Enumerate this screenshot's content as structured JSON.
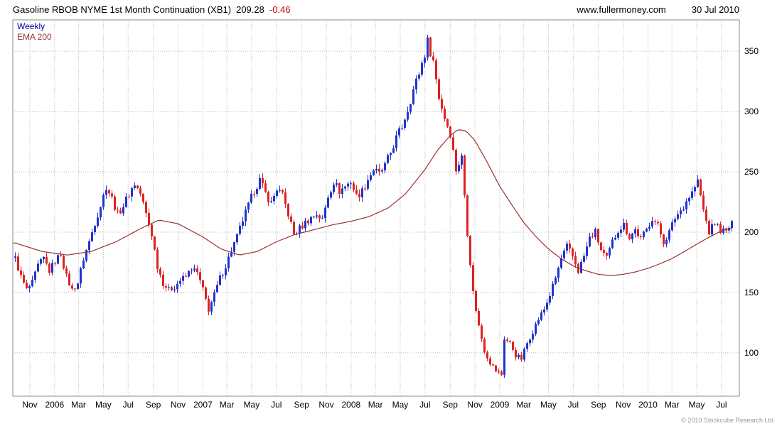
{
  "header": {
    "title": "Gasoline RBOB NYME 1st Month Continuation (XB1)",
    "last_price": "209.28",
    "change": "-0.46",
    "website": "www.fullermoney.com",
    "date": "30 Jul 2010"
  },
  "legend": {
    "weekly_label": "Weekly",
    "ema_label": "EMA 200"
  },
  "footer": {
    "copyright": "© 2010 Stockcube Research Ltd"
  },
  "colors": {
    "up": "#2233cc",
    "down": "#dd2222",
    "ema": "#993333",
    "grid": "#bbbbbb",
    "border": "#888888",
    "change": "#cc0000",
    "legend_weekly": "#0000aa",
    "text": "#000000"
  },
  "chart_data": {
    "type": "candlestick",
    "title": "Gasoline RBOB NYME 1st Month Continuation (XB1)",
    "interval": "weekly",
    "last_close": 209.28,
    "change": -0.46,
    "y_ticks": [
      100,
      150,
      200,
      250,
      300,
      350
    ],
    "y_range": [
      64,
      376
    ],
    "x_domain": [
      "2005-09-20",
      "2010-08-14"
    ],
    "data_start": "2005-09-26",
    "data_end": "2010-07-30",
    "legend_position": "top-left",
    "grid": "dotted",
    "x_ticks": [
      {
        "date": "2005-11-01",
        "label": "Nov"
      },
      {
        "date": "2006-01-01",
        "label": "2006"
      },
      {
        "date": "2006-03-01",
        "label": "Mar"
      },
      {
        "date": "2006-05-01",
        "label": "May"
      },
      {
        "date": "2006-07-01",
        "label": "Jul"
      },
      {
        "date": "2006-09-01",
        "label": "Sep"
      },
      {
        "date": "2006-11-01",
        "label": "Nov"
      },
      {
        "date": "2007-01-01",
        "label": "2007"
      },
      {
        "date": "2007-03-01",
        "label": "Mar"
      },
      {
        "date": "2007-05-01",
        "label": "May"
      },
      {
        "date": "2007-07-01",
        "label": "Jul"
      },
      {
        "date": "2007-09-01",
        "label": "Sep"
      },
      {
        "date": "2007-11-01",
        "label": "Nov"
      },
      {
        "date": "2008-01-01",
        "label": "2008"
      },
      {
        "date": "2008-03-01",
        "label": "Mar"
      },
      {
        "date": "2008-05-01",
        "label": "May"
      },
      {
        "date": "2008-07-01",
        "label": "Jul"
      },
      {
        "date": "2008-09-01",
        "label": "Sep"
      },
      {
        "date": "2008-11-01",
        "label": "Nov"
      },
      {
        "date": "2009-01-01",
        "label": "2009"
      },
      {
        "date": "2009-03-01",
        "label": "Mar"
      },
      {
        "date": "2009-05-01",
        "label": "May"
      },
      {
        "date": "2009-07-01",
        "label": "Jul"
      },
      {
        "date": "2009-09-01",
        "label": "Sep"
      },
      {
        "date": "2009-11-01",
        "label": "Nov"
      },
      {
        "date": "2010-01-01",
        "label": "2010"
      },
      {
        "date": "2010-03-01",
        "label": "Mar"
      },
      {
        "date": "2010-05-01",
        "label": "May"
      },
      {
        "date": "2010-07-01",
        "label": "Jul"
      }
    ],
    "close_anchors": [
      [
        "2005-09-26",
        178
      ],
      [
        "2005-10-10",
        163
      ],
      [
        "2005-10-24",
        152
      ],
      [
        "2005-11-07",
        158
      ],
      [
        "2005-11-21",
        172
      ],
      [
        "2005-12-05",
        178
      ],
      [
        "2005-12-19",
        168
      ],
      [
        "2006-01-02",
        176
      ],
      [
        "2006-01-16",
        182
      ],
      [
        "2006-01-30",
        163
      ],
      [
        "2006-02-13",
        152
      ],
      [
        "2006-02-27",
        158
      ],
      [
        "2006-03-13",
        178
      ],
      [
        "2006-03-27",
        192
      ],
      [
        "2006-04-10",
        208
      ],
      [
        "2006-04-24",
        222
      ],
      [
        "2006-05-08",
        238
      ],
      [
        "2006-05-22",
        228
      ],
      [
        "2006-06-05",
        215
      ],
      [
        "2006-06-19",
        222
      ],
      [
        "2006-07-03",
        232
      ],
      [
        "2006-07-17",
        240
      ],
      [
        "2006-07-31",
        232
      ],
      [
        "2006-08-14",
        215
      ],
      [
        "2006-08-28",
        198
      ],
      [
        "2006-09-11",
        172
      ],
      [
        "2006-09-25",
        158
      ],
      [
        "2006-10-09",
        152
      ],
      [
        "2006-10-23",
        155
      ],
      [
        "2006-11-06",
        160
      ],
      [
        "2006-11-20",
        163
      ],
      [
        "2006-12-04",
        170
      ],
      [
        "2006-12-18",
        166
      ],
      [
        "2007-01-01",
        152
      ],
      [
        "2007-01-15",
        136
      ],
      [
        "2007-01-29",
        148
      ],
      [
        "2007-02-12",
        162
      ],
      [
        "2007-02-26",
        172
      ],
      [
        "2007-03-12",
        185
      ],
      [
        "2007-03-26",
        196
      ],
      [
        "2007-04-09",
        210
      ],
      [
        "2007-04-23",
        222
      ],
      [
        "2007-05-07",
        235
      ],
      [
        "2007-05-21",
        243
      ],
      [
        "2007-06-04",
        232
      ],
      [
        "2007-06-18",
        224
      ],
      [
        "2007-07-02",
        236
      ],
      [
        "2007-07-16",
        230
      ],
      [
        "2007-07-30",
        215
      ],
      [
        "2007-08-13",
        198
      ],
      [
        "2007-08-27",
        203
      ],
      [
        "2007-09-10",
        208
      ],
      [
        "2007-09-24",
        212
      ],
      [
        "2007-10-08",
        215
      ],
      [
        "2007-10-22",
        210
      ],
      [
        "2007-11-05",
        230
      ],
      [
        "2007-11-19",
        242
      ],
      [
        "2007-12-03",
        234
      ],
      [
        "2007-12-17",
        238
      ],
      [
        "2007-12-31",
        242
      ],
      [
        "2008-01-14",
        230
      ],
      [
        "2008-01-28",
        234
      ],
      [
        "2008-02-11",
        244
      ],
      [
        "2008-02-25",
        252
      ],
      [
        "2008-03-10",
        248
      ],
      [
        "2008-03-24",
        255
      ],
      [
        "2008-04-07",
        266
      ],
      [
        "2008-04-21",
        278
      ],
      [
        "2008-05-05",
        288
      ],
      [
        "2008-05-19",
        302
      ],
      [
        "2008-06-02",
        318
      ],
      [
        "2008-06-16",
        332
      ],
      [
        "2008-06-30",
        348
      ],
      [
        "2008-07-07",
        358
      ],
      [
        "2008-07-21",
        342
      ],
      [
        "2008-08-04",
        312
      ],
      [
        "2008-08-18",
        295
      ],
      [
        "2008-09-01",
        282
      ],
      [
        "2008-09-15",
        252
      ],
      [
        "2008-09-29",
        262
      ],
      [
        "2008-10-13",
        200
      ],
      [
        "2008-10-27",
        150
      ],
      [
        "2008-11-10",
        122
      ],
      [
        "2008-11-24",
        102
      ],
      [
        "2008-12-08",
        92
      ],
      [
        "2008-12-22",
        85
      ],
      [
        "2009-01-05",
        82
      ],
      [
        "2009-01-12",
        112
      ],
      [
        "2009-01-26",
        108
      ],
      [
        "2009-02-09",
        98
      ],
      [
        "2009-02-23",
        95
      ],
      [
        "2009-03-09",
        108
      ],
      [
        "2009-03-23",
        118
      ],
      [
        "2009-04-06",
        128
      ],
      [
        "2009-04-20",
        136
      ],
      [
        "2009-05-04",
        148
      ],
      [
        "2009-05-18",
        162
      ],
      [
        "2009-06-01",
        178
      ],
      [
        "2009-06-15",
        188
      ],
      [
        "2009-06-29",
        180
      ],
      [
        "2009-07-13",
        168
      ],
      [
        "2009-07-27",
        180
      ],
      [
        "2009-08-10",
        195
      ],
      [
        "2009-08-24",
        200
      ],
      [
        "2009-09-07",
        185
      ],
      [
        "2009-09-21",
        178
      ],
      [
        "2009-10-05",
        192
      ],
      [
        "2009-10-19",
        202
      ],
      [
        "2009-11-02",
        206
      ],
      [
        "2009-11-16",
        196
      ],
      [
        "2009-11-30",
        202
      ],
      [
        "2009-12-14",
        194
      ],
      [
        "2009-12-28",
        202
      ],
      [
        "2010-01-11",
        212
      ],
      [
        "2010-01-25",
        205
      ],
      [
        "2010-02-08",
        192
      ],
      [
        "2010-02-22",
        200
      ],
      [
        "2010-03-08",
        212
      ],
      [
        "2010-03-22",
        218
      ],
      [
        "2010-04-05",
        226
      ],
      [
        "2010-04-19",
        233
      ],
      [
        "2010-05-03",
        242
      ],
      [
        "2010-05-17",
        218
      ],
      [
        "2010-05-31",
        200
      ],
      [
        "2010-06-14",
        208
      ],
      [
        "2010-06-28",
        202
      ],
      [
        "2010-07-12",
        200
      ],
      [
        "2010-07-26",
        208
      ],
      [
        "2010-07-30",
        209.28
      ]
    ],
    "ema_anchors": [
      [
        "2005-09-26",
        191
      ],
      [
        "2005-12-01",
        184
      ],
      [
        "2006-02-01",
        181
      ],
      [
        "2006-04-01",
        184
      ],
      [
        "2006-06-01",
        192
      ],
      [
        "2006-08-01",
        203
      ],
      [
        "2006-09-15",
        210
      ],
      [
        "2006-11-01",
        207
      ],
      [
        "2007-01-01",
        196
      ],
      [
        "2007-02-15",
        186
      ],
      [
        "2007-04-01",
        181
      ],
      [
        "2007-05-15",
        184
      ],
      [
        "2007-07-01",
        192
      ],
      [
        "2007-08-15",
        198
      ],
      [
        "2007-10-01",
        202
      ],
      [
        "2007-11-15",
        206
      ],
      [
        "2008-01-01",
        209
      ],
      [
        "2008-02-15",
        213
      ],
      [
        "2008-04-01",
        220
      ],
      [
        "2008-05-15",
        232
      ],
      [
        "2008-07-01",
        252
      ],
      [
        "2008-08-01",
        268
      ],
      [
        "2008-09-01",
        280
      ],
      [
        "2008-09-20",
        285
      ],
      [
        "2008-10-10",
        284
      ],
      [
        "2008-11-01",
        276
      ],
      [
        "2008-12-01",
        258
      ],
      [
        "2009-01-01",
        238
      ],
      [
        "2009-02-01",
        222
      ],
      [
        "2009-03-01",
        208
      ],
      [
        "2009-04-01",
        196
      ],
      [
        "2009-05-01",
        186
      ],
      [
        "2009-06-01",
        178
      ],
      [
        "2009-07-01",
        172
      ],
      [
        "2009-08-01",
        168
      ],
      [
        "2009-09-01",
        165
      ],
      [
        "2009-10-01",
        164
      ],
      [
        "2009-11-01",
        165
      ],
      [
        "2009-12-01",
        167
      ],
      [
        "2010-01-01",
        170
      ],
      [
        "2010-02-01",
        174
      ],
      [
        "2010-03-01",
        178
      ],
      [
        "2010-04-01",
        184
      ],
      [
        "2010-05-01",
        190
      ],
      [
        "2010-06-01",
        196
      ],
      [
        "2010-07-01",
        201
      ],
      [
        "2010-07-30",
        204
      ]
    ],
    "series": [
      {
        "name": "Weekly",
        "type": "candlestick"
      },
      {
        "name": "EMA 200",
        "type": "line"
      }
    ]
  }
}
